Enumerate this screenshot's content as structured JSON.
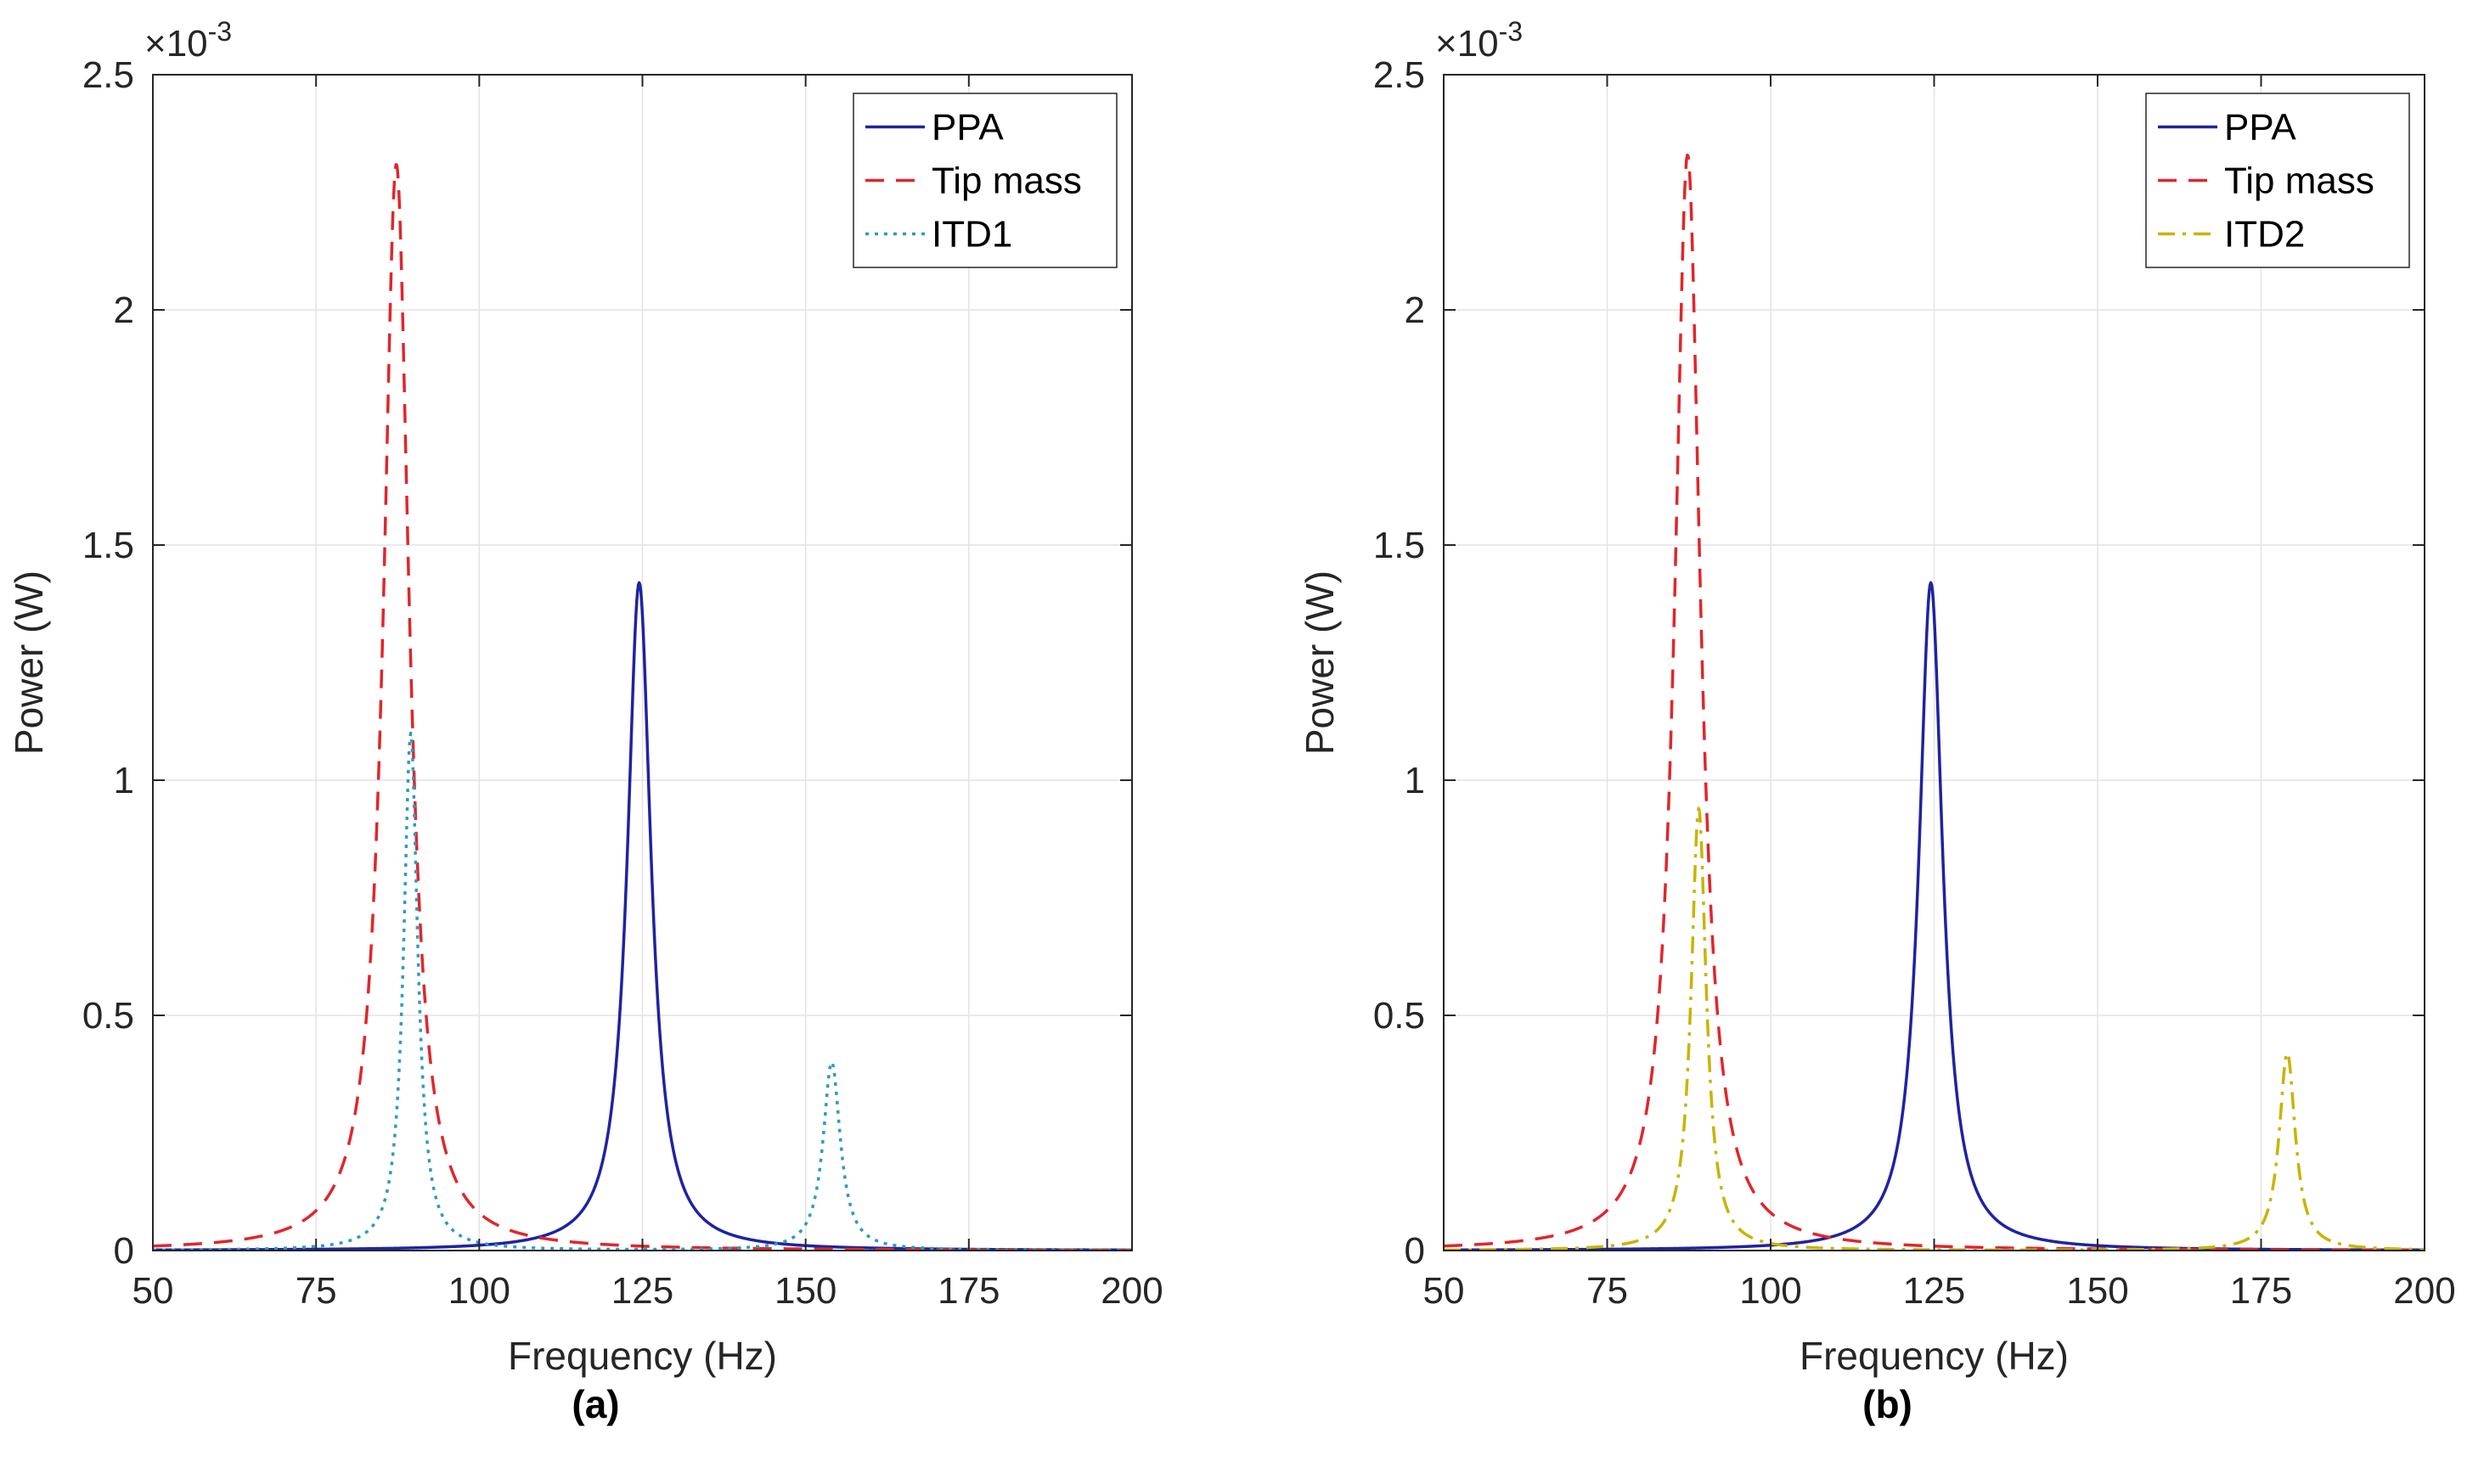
{
  "chart_data": [
    {
      "type": "line",
      "caption": "(a)",
      "xlabel": "Frequency (Hz)",
      "ylabel": "Power (W)",
      "exponent_label": "×10",
      "exponent_power": "-3",
      "xlim": [
        50,
        200
      ],
      "ylim": [
        0,
        2.5
      ],
      "xticks": [
        50,
        75,
        100,
        125,
        150,
        175,
        200
      ],
      "yticks": [
        0,
        0.5,
        1,
        1.5,
        2,
        2.5
      ],
      "xtick_labels": [
        "50",
        "75",
        "100",
        "125",
        "150",
        "175",
        "200"
      ],
      "ytick_labels": [
        "0",
        "0.5",
        "1",
        "1.5",
        "2",
        "2.5"
      ],
      "grid": true,
      "legend_position": "top-right",
      "series": [
        {
          "name": "PPA",
          "style": "solid",
          "color": "#1f23a0",
          "peaks": [
            {
              "f": 124.5,
              "amp": 1.42,
              "width": 2.2
            }
          ]
        },
        {
          "name": "Tip mass",
          "style": "dashed",
          "color": "#e0262b",
          "peaks": [
            {
              "f": 87.3,
              "amp": 2.31,
              "width": 2.4
            }
          ]
        },
        {
          "name": "ITD1",
          "style": "dotted",
          "color": "#2a9bc4",
          "peaks": [
            {
              "f": 89.5,
              "amp": 1.1,
              "width": 1.3
            },
            {
              "f": 154,
              "amp": 0.4,
              "width": 1.6
            }
          ]
        }
      ]
    },
    {
      "type": "line",
      "caption": "(b)",
      "xlabel": "Frequency (Hz)",
      "ylabel": "Power (W)",
      "exponent_label": "×10",
      "exponent_power": "-3",
      "xlim": [
        50,
        200
      ],
      "ylim": [
        0,
        2.5
      ],
      "xticks": [
        50,
        75,
        100,
        125,
        150,
        175,
        200
      ],
      "yticks": [
        0,
        0.5,
        1,
        1.5,
        2,
        2.5
      ],
      "xtick_labels": [
        "50",
        "75",
        "100",
        "125",
        "150",
        "175",
        "200"
      ],
      "ytick_labels": [
        "0",
        "0.5",
        "1",
        "1.5",
        "2",
        "2.5"
      ],
      "grid": true,
      "legend_position": "top-right",
      "series": [
        {
          "name": "PPA",
          "style": "solid",
          "color": "#1f23a0",
          "peaks": [
            {
              "f": 124.5,
              "amp": 1.42,
              "width": 2.2
            }
          ]
        },
        {
          "name": "Tip mass",
          "style": "dashed",
          "color": "#e0262b",
          "peaks": [
            {
              "f": 87.3,
              "amp": 2.33,
              "width": 2.4
            }
          ]
        },
        {
          "name": "ITD2",
          "style": "dashdot",
          "color": "#c8b400",
          "peaks": [
            {
              "f": 89,
              "amp": 0.94,
              "width": 1.4
            },
            {
              "f": 179,
              "amp": 0.42,
              "width": 1.5
            }
          ]
        }
      ]
    }
  ]
}
